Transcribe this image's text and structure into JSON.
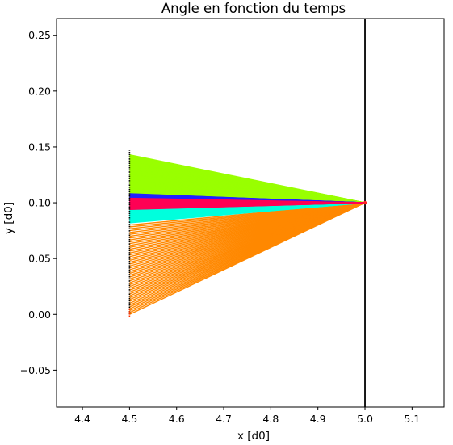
{
  "chart_data": {
    "type": "line",
    "title": "Angle en fonction du temps",
    "xlabel": "x [d0]",
    "ylabel": "y [d0]",
    "xlim": [
      4.345,
      5.168
    ],
    "ylim": [
      -0.083,
      0.265
    ],
    "xticks": [
      4.4,
      4.5,
      4.6,
      4.7,
      4.8,
      4.9,
      5.0,
      5.1
    ],
    "xtick_labels": [
      "4.4",
      "4.5",
      "4.6",
      "4.7",
      "4.8",
      "4.9",
      "5.0",
      "5.1"
    ],
    "yticks": [
      -0.05,
      0.0,
      0.05,
      0.1,
      0.15,
      0.2,
      0.25
    ],
    "ytick_labels": [
      "−0.05",
      "0.00",
      "0.05",
      "0.10",
      "0.15",
      "0.20",
      "0.25"
    ],
    "grid": false,
    "legend": "none",
    "pivot": [
      5.0,
      0.1
    ],
    "vertical_line_x": 5.0,
    "tip_x": 4.5,
    "fans": [
      {
        "color": "#ff8800",
        "y_start": 0.08,
        "y_end": 0.0
      },
      {
        "color": "#99ff00",
        "y_start": 0.143,
        "y_end": 0.108
      },
      {
        "color": "#00ffdd",
        "y_start": 0.094,
        "y_end": 0.082
      },
      {
        "color": "#2222ff",
        "y_start": 0.108,
        "y_end": 0.1
      },
      {
        "color": "#ff0055",
        "y_start": 0.104,
        "y_end": 0.094
      }
    ],
    "tip_traces": [
      {
        "color": "#000000",
        "y_range": [
          0.0,
          0.147
        ]
      },
      {
        "color": "#ff3300",
        "y_range": [
          -0.002,
          0.006
        ]
      }
    ]
  }
}
